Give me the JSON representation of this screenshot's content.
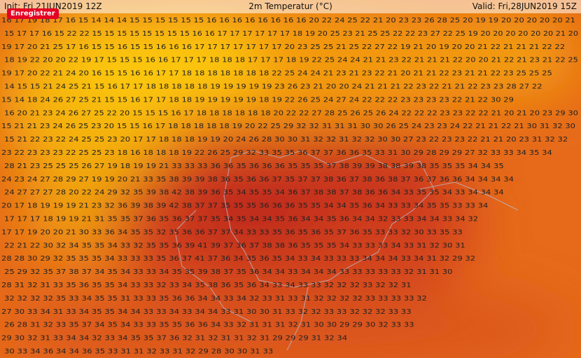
{
  "header": {
    "init": "Init: Fri 21JUN2019 12Z",
    "title": "2m Temperatur (°C)",
    "valid": "Valid: Fri,28JUN2019 15Z"
  },
  "button": "Enregistrer",
  "grid_rows": [
    "16 17 19 18 17 16 15 14 14 14 15 15 15 15 15 15 16 16 16 16 16 16 16 16 20 22 24 25 22 21 20 23 23 26 28 25 20 19 19 20 20 20 20 20 21",
    "15 17 17 16 15 22 22 15 15 15 15 15 15 15 15 16 16 17 17 17 17 17 17 18 19 20 25 23 21 25 25 22 22 23 27 22 25 19 20 20 20 20 20 20 21 20",
    "19 17 20 21 25 17 16 15 15 16 15 15 16 16 16 17 17 17 17 17 17 17 20 23 25 25 21 25 22 27 22 19 21 20 19 20 20 21 22 21 21 21 22 22",
    "18 19 22 20 20 22 19 17 15 15 15 16 16 17 17 17 18 18 18 17 17 17 18 19 22 25 24 24 21 21 23 22 21 21 21 22 20 20 21 22 21 23 21 22 25",
    "19 17 20 22 21 24 20 16 15 15 16 16 17 17 18 18 18 18 18 18 18 22 25 24 24 21 23 21 23 22 21 20 21 21 22 23 21 21 22 23 25 25 25",
    "14 15 15 21 24 25 21 15 16 17 17 18 18 18 18 18 19 19 19 19 19 23 26 23 21 20 20 24 21 21 21 22 23 22 21 21 22 23 23 28 27 22",
    "15 14 18 24 26 27 25 21 15 15 16 17 17 18 18 19 19 19 19 19 18 19 22 26 25 24 27 24 22 22 22 23 23 23 23 22 21 22 30 29",
    "16 20 21 23 24 26 27 25 22 20 15 15 15 16 17 18 18 18 18 18 18 20 22 22 27 28 25 26 25 26 24 22 22 22 23 23 22 22 21 20 21 20 23 29 30",
    "15 21 21 23 24 26 25 23 20 15 15 16 17 18 18 18 18 18 19 20 22 25 29 32 32 31 31 31 30 30 26 25 24 23 23 24 22 21 21 22 21 30 31 32 30",
    "15 21 22 23 22 24 25 25 23 20 17 17 18 18 18 19 19 20 24 26 28 30 30 31 32 32 31 32 32 30 30 27 23 22 23 23 22 21 21 20 23 31 32 32",
    "23 22 23 23 23 22 25 25 23 18 16 18 18 18 19 22 26 25 29 32 33 35 35 36 37 37 36 36 35 33 31 30 29 28 29 29 27 32 33 33 34 35 34",
    "28 21 23 25 25 25 26 27 19 18 19 19 21 33 33 33 36 36 35 36 36 36 35 35 35 37 38 39 39 38 38 39 38 35 35 35 34 34 35",
    "24 23 24 27 28 29 27 19 19 20 21 33 35 38 39 39 38 36 35 36 36 37 35 37 37 38 36 37 38 36 38 37 36 37 36 36 34 34 34 34",
    "24 27 27 27 28 20 22 24 29 32 35 39 38 42 38 39 36 35 34 35 35 34 36 37 38 38 37 38 36 36 34 33 35 35 34 33 34 34 34",
    "20 17 18 19 19 19 21 23 32 36 39 38 39 42 38 37 37 35 35 35 36 36 36 35 35 34 34 35 36 34 33 33 34 35 35 33 33 34",
    "17 17 17 18 19 19 21 31 35 35 37 36 35 36 37 37 35 34 35 34 34 35 36 34 34 35 36 34 34 32 33 33 34 34 33 34 32",
    "17 17 19 20 20 21 30 33 36 34 35 35 32 35 36 36 37 37 34 33 33 35 36 35 36 35 37 36 35 33 33 32 30 33 35 33",
    "22 21 22 30 32 34 35 35 34 33 32 35 35 36 39 41 39 37 36 37 38 38 36 35 35 35 34 33 33 33 34 33 31 32 30 31",
    "28 28 30 29 32 35 35 35 34 33 33 33 35 36 37 41 37 36 34 35 36 35 34 33 34 33 33 33 34 34 34 33 34 31 32 29 32",
    "25 29 32 35 37 38 37 34 35 34 33 33 34 35 35 39 38 37 35 36 34 34 33 34 34 34 33 33 33 33 33 32 31 31 30",
    "28 31 32 31 33 35 36 35 35 34 33 33 32 33 34 35 38 36 35 36 34 33 34 33 33 32 32 32 33 32 32 31",
    "32 32 32 32 35 33 34 35 35 31 33 33 35 36 36 34 34 33 34 32 33 31 33 31 32 32 32 32 33 33 33 33 32",
    "27 30 33 34 31 33 34 35 35 34 34 33 33 34 33 34 34 33 31 30 30 31 33 32 32 33 33 32 32 32 33 33",
    "26 28 31 32 33 35 37 34 35 34 33 33 35 35 36 36 34 33 32 31 31 31 32 31 30 30 29 29 30 32 33 33",
    "29 30 32 31 33 34 34 32 33 34 35 35 37 36 32 31 32 31 31 32 31 29 29 29 31 32 34",
    "30 33 34 36 34 34 36 35 33 31 31 32 33 31 32 29 28 30 30 31 33"
  ]
}
